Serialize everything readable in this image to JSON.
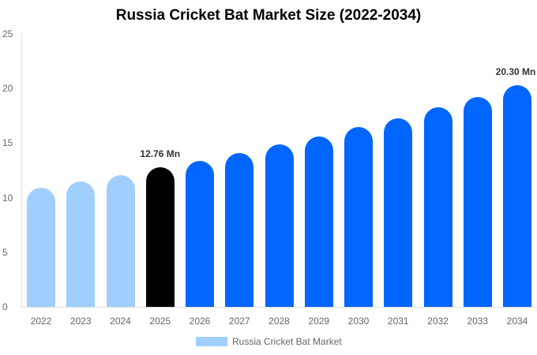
{
  "chart_data": {
    "type": "bar",
    "title": "Russia Cricket Bat Market Size (2022-2034)",
    "xlabel": "",
    "ylabel": "",
    "ylim": [
      0,
      25
    ],
    "yticks": [
      0,
      5,
      10,
      15,
      20,
      25
    ],
    "grid": false,
    "legend_position": "bottom",
    "categories": [
      "2022",
      "2023",
      "2024",
      "2025",
      "2026",
      "2027",
      "2028",
      "2029",
      "2030",
      "2031",
      "2032",
      "2033",
      "2034"
    ],
    "series": [
      {
        "name": "Russia Cricket Bat Market",
        "values": [
          10.9,
          11.5,
          12.1,
          12.76,
          13.4,
          14.1,
          14.9,
          15.6,
          16.5,
          17.3,
          18.3,
          19.2,
          20.3
        ]
      }
    ],
    "bar_colors": [
      "#a0cfff",
      "#a0cfff",
      "#a0cfff",
      "#000000",
      "#0066ff",
      "#0066ff",
      "#0066ff",
      "#0066ff",
      "#0066ff",
      "#0066ff",
      "#0066ff",
      "#0066ff",
      "#0066ff"
    ],
    "annotations": [
      {
        "category": "2025",
        "text": "12.76 Mn"
      },
      {
        "category": "2034",
        "text": "20.30 Mn"
      }
    ]
  },
  "legend": {
    "label": "Russia Cricket Bat Market",
    "color": "#a0cfff"
  }
}
